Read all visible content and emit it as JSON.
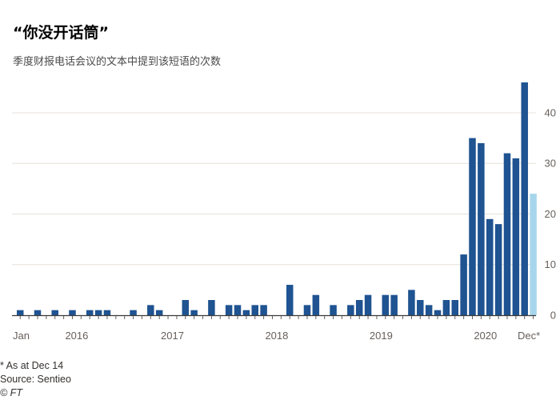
{
  "header": {
    "title": "“你没开话筒”",
    "subtitle": "季度财报电话会议的文本中提到该短语的次数"
  },
  "footer": {
    "note": "* As at Dec 14",
    "source": "Source: Sentieo",
    "copyright": "© FT"
  },
  "colors": {
    "bar": "#1f5391",
    "bar_partial": "#a7d6ec",
    "grid": "#e7e2dc",
    "axis": "#66605c"
  },
  "chart_data": {
    "type": "bar",
    "title": "“你没开话筒”",
    "subtitle": "季度财报电话会议的文本中提到该短语的次数",
    "xlabel": "",
    "ylabel": "",
    "ylim": [
      0,
      46
    ],
    "yticks": [
      0,
      10,
      20,
      30,
      40
    ],
    "grid": true,
    "y_axis_side": "right",
    "x_tick_labels": [
      {
        "label": "Jan",
        "bar_index": 0
      },
      {
        "label": "2016",
        "bar_index": 6.5
      },
      {
        "label": "2017",
        "bar_index": 17.5
      },
      {
        "label": "2018",
        "bar_index": 29.5
      },
      {
        "label": "2019",
        "bar_index": 41.5
      },
      {
        "label": "2020",
        "bar_index": 53.5
      },
      {
        "label": "Dec*",
        "bar_index": 58.5
      }
    ],
    "values": [
      1,
      0,
      1,
      0,
      1,
      0,
      1,
      0,
      1,
      1,
      1,
      0,
      0,
      1,
      0,
      2,
      1,
      0,
      0,
      3,
      1,
      0,
      3,
      0,
      2,
      2,
      1,
      2,
      2,
      0,
      0,
      6,
      0,
      2,
      4,
      0,
      2,
      0,
      2,
      3,
      4,
      0,
      4,
      4,
      0,
      5,
      3,
      2,
      1,
      3,
      3,
      12,
      35,
      34,
      19,
      18,
      32,
      31,
      46,
      24
    ],
    "highlight_last": true
  }
}
